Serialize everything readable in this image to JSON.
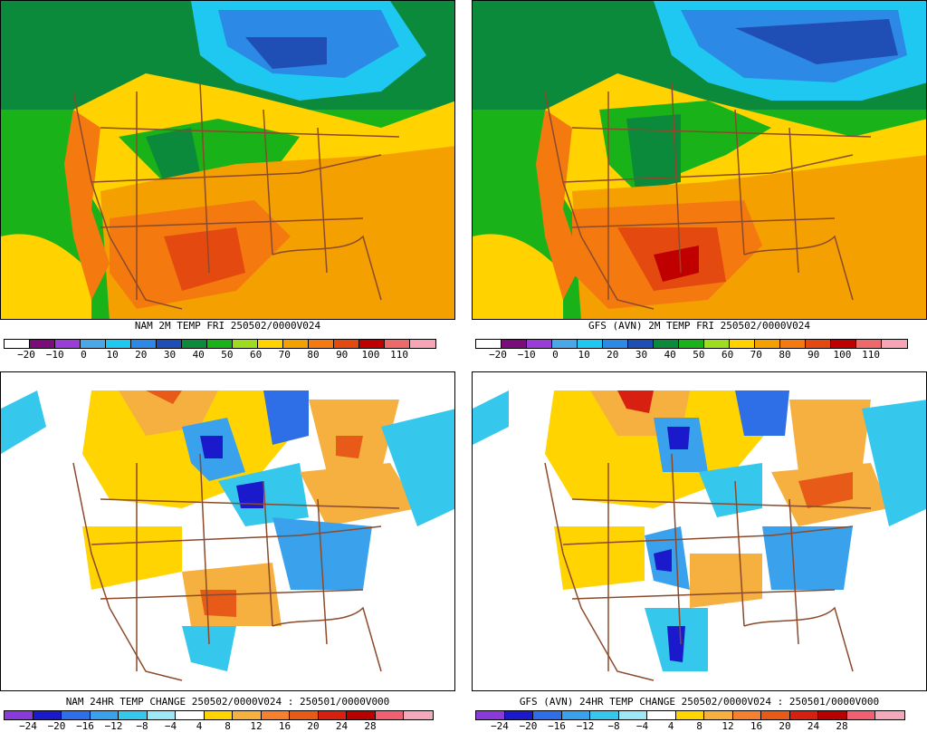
{
  "panels": [
    {
      "title": "NAM 2M TEMP  FRI 250502/0000V024"
    },
    {
      "title": "GFS (AVN) 2M TEMP  FRI 250502/0000V024"
    },
    {
      "title": "NAM 24HR TEMP CHANGE 250502/0000V024 : 250501/0000V000"
    },
    {
      "title": "GFS (AVN) 24HR TEMP CHANGE 250502/0000V024 : 250501/0000V000"
    }
  ],
  "temp_scale": {
    "colors": [
      "#ffffff",
      "#7a0d7a",
      "#9a3dd8",
      "#4aa8e8",
      "#1ec8f0",
      "#2c8ae6",
      "#1f4fb5",
      "#0a8a3a",
      "#19b319",
      "#9ddc1f",
      "#ffd200",
      "#f4a000",
      "#f47a10",
      "#e44a10",
      "#c00000",
      "#ee6a6a",
      "#f7a4b4"
    ],
    "labels": [
      "−20",
      "−10",
      "0",
      "10",
      "20",
      "30",
      "40",
      "50",
      "60",
      "70",
      "80",
      "90",
      "100",
      "110"
    ]
  },
  "change_scale": {
    "colors": [
      "#8a3ad8",
      "#1a1acc",
      "#2e6ee6",
      "#3aa2ec",
      "#36c8ec",
      "#9ee8f6",
      "#ffffff",
      "#ffd400",
      "#f6b040",
      "#f58030",
      "#e85a18",
      "#d82010",
      "#b80000",
      "#f06070",
      "#f4a8bc"
    ],
    "labels": [
      "−24",
      "−20",
      "−16",
      "−12",
      "−8",
      "−4",
      "4",
      "8",
      "12",
      "16",
      "20",
      "24",
      "28"
    ]
  }
}
